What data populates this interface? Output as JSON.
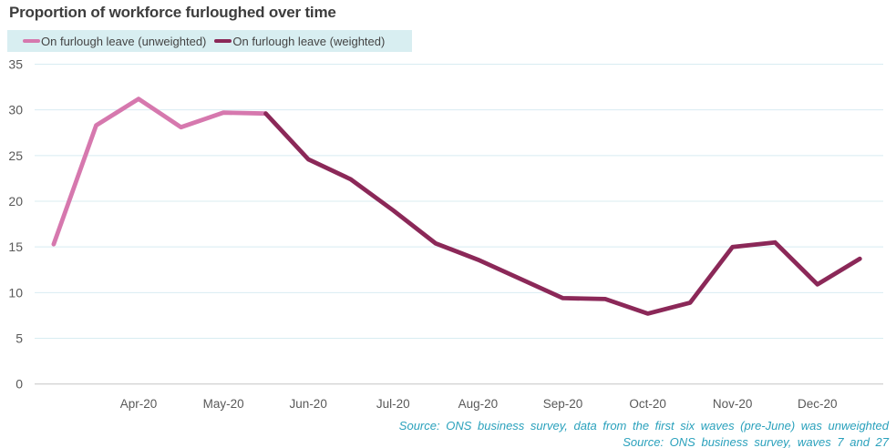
{
  "title": "Proportion of workforce furloughed over time",
  "legend": {
    "background": "#d8eef1",
    "items": [
      {
        "label": "On furlough leave (unweighted)",
        "color": "#d678ae"
      },
      {
        "label": "On furlough leave (weighted)",
        "color": "#8b2858"
      }
    ]
  },
  "source_lines": [
    "Source: ONS business survey, data from the first six waves (pre-June) was unweighted",
    "Source: ONS business survey, waves 7 and 27"
  ],
  "colors": {
    "title_text": "#3d3d3d",
    "tick_text": "#595959",
    "gridline": "#d8ecf2",
    "zero_line": "#c6c6c6",
    "source_text": "#2aa1bc",
    "unweighted_line": "#d678ae",
    "weighted_line": "#8b2858"
  },
  "chart_data": {
    "type": "line",
    "title": "Proportion of workforce furloughed over time",
    "xlabel": "",
    "ylabel": "",
    "grid": "horizontal",
    "legend_position": "top-left",
    "x_unit_note": "x in months, Apr-20 = 1; points every half month (survey waves)",
    "x_tick_positions": [
      1,
      2,
      3,
      4,
      5,
      6,
      7,
      8,
      9
    ],
    "x_tick_labels": [
      "Apr-20",
      "May-20",
      "Jun-20",
      "Jul-20",
      "Aug-20",
      "Sep-20",
      "Oct-20",
      "Nov-20",
      "Dec-20"
    ],
    "y_ticks": [
      0,
      5,
      10,
      15,
      20,
      25,
      30,
      35
    ],
    "xlim": [
      -0.25,
      9.78
    ],
    "ylim": [
      0,
      35
    ],
    "series": [
      {
        "name": "On furlough leave (unweighted)",
        "color": "#d678ae",
        "x": [
          0,
          0.5,
          1,
          1.5,
          2,
          2.5
        ],
        "values": [
          15.3,
          28.3,
          31.2,
          28.1,
          29.7,
          29.6
        ]
      },
      {
        "name": "On furlough leave (weighted)",
        "color": "#8b2858",
        "x": [
          2.5,
          3,
          3.5,
          4,
          4.5,
          5,
          5.5,
          6,
          6.5,
          7,
          7.5,
          8,
          8.5,
          9,
          9.5
        ],
        "values": [
          29.6,
          24.6,
          22.4,
          19.0,
          15.4,
          13.6,
          11.5,
          9.4,
          9.3,
          7.7,
          8.9,
          15.0,
          15.5,
          10.9,
          13.7
        ]
      }
    ]
  }
}
